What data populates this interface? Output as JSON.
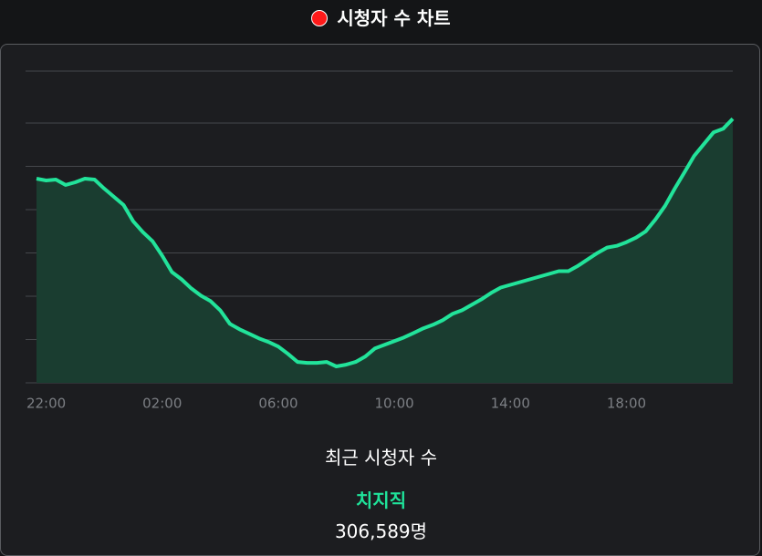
{
  "header": {
    "title": "시청자 수 차트"
  },
  "chart_data": {
    "type": "line",
    "color": "#22e39a",
    "fill": "#1a3d30",
    "grid": true,
    "categories": [
      null,
      "22:00",
      null,
      null,
      null,
      null,
      null,
      null,
      null,
      null,
      null,
      null,
      null,
      "02:00",
      null,
      null,
      null,
      null,
      null,
      null,
      null,
      null,
      null,
      null,
      null,
      "06:00",
      null,
      null,
      null,
      null,
      null,
      null,
      null,
      null,
      null,
      null,
      null,
      "10:00",
      null,
      null,
      null,
      null,
      null,
      null,
      null,
      null,
      null,
      null,
      null,
      "14:00",
      null,
      null,
      null,
      null,
      null,
      null,
      null,
      null,
      null,
      null,
      null,
      "18:00",
      null,
      null,
      null,
      null,
      null,
      null,
      null,
      null,
      null,
      null,
      null
    ],
    "values": [
      235800,
      233700,
      234700,
      228500,
      231600,
      235800,
      234700,
      224300,
      214800,
      205400,
      186500,
      174000,
      163500,
      146700,
      127900,
      119500,
      109000,
      100600,
      94300,
      83800,
      68100,
      61800,
      56600,
      51400,
      47200,
      41900,
      33500,
      24100,
      23100,
      23100,
      24100,
      18900,
      21000,
      24100,
      30400,
      39800,
      44000,
      48200,
      52400,
      57600,
      62900,
      67100,
      72300,
      79600,
      83800,
      90100,
      96400,
      103800,
      110000,
      113200,
      116300,
      119500,
      122600,
      125800,
      128900,
      128900,
      135200,
      142500,
      149900,
      156200,
      158200,
      162400,
      167700,
      175000,
      188600,
      204400,
      224300,
      243100,
      262000,
      275600,
      289200,
      293400,
      305000
    ],
    "ylim": [
      0,
      360000
    ],
    "yticks": [
      0,
      50000,
      100000,
      150000,
      200000,
      250000,
      300000
    ]
  },
  "summary": {
    "label": "최근 시청자 수",
    "channel": "치지직",
    "count": "306,589명"
  }
}
